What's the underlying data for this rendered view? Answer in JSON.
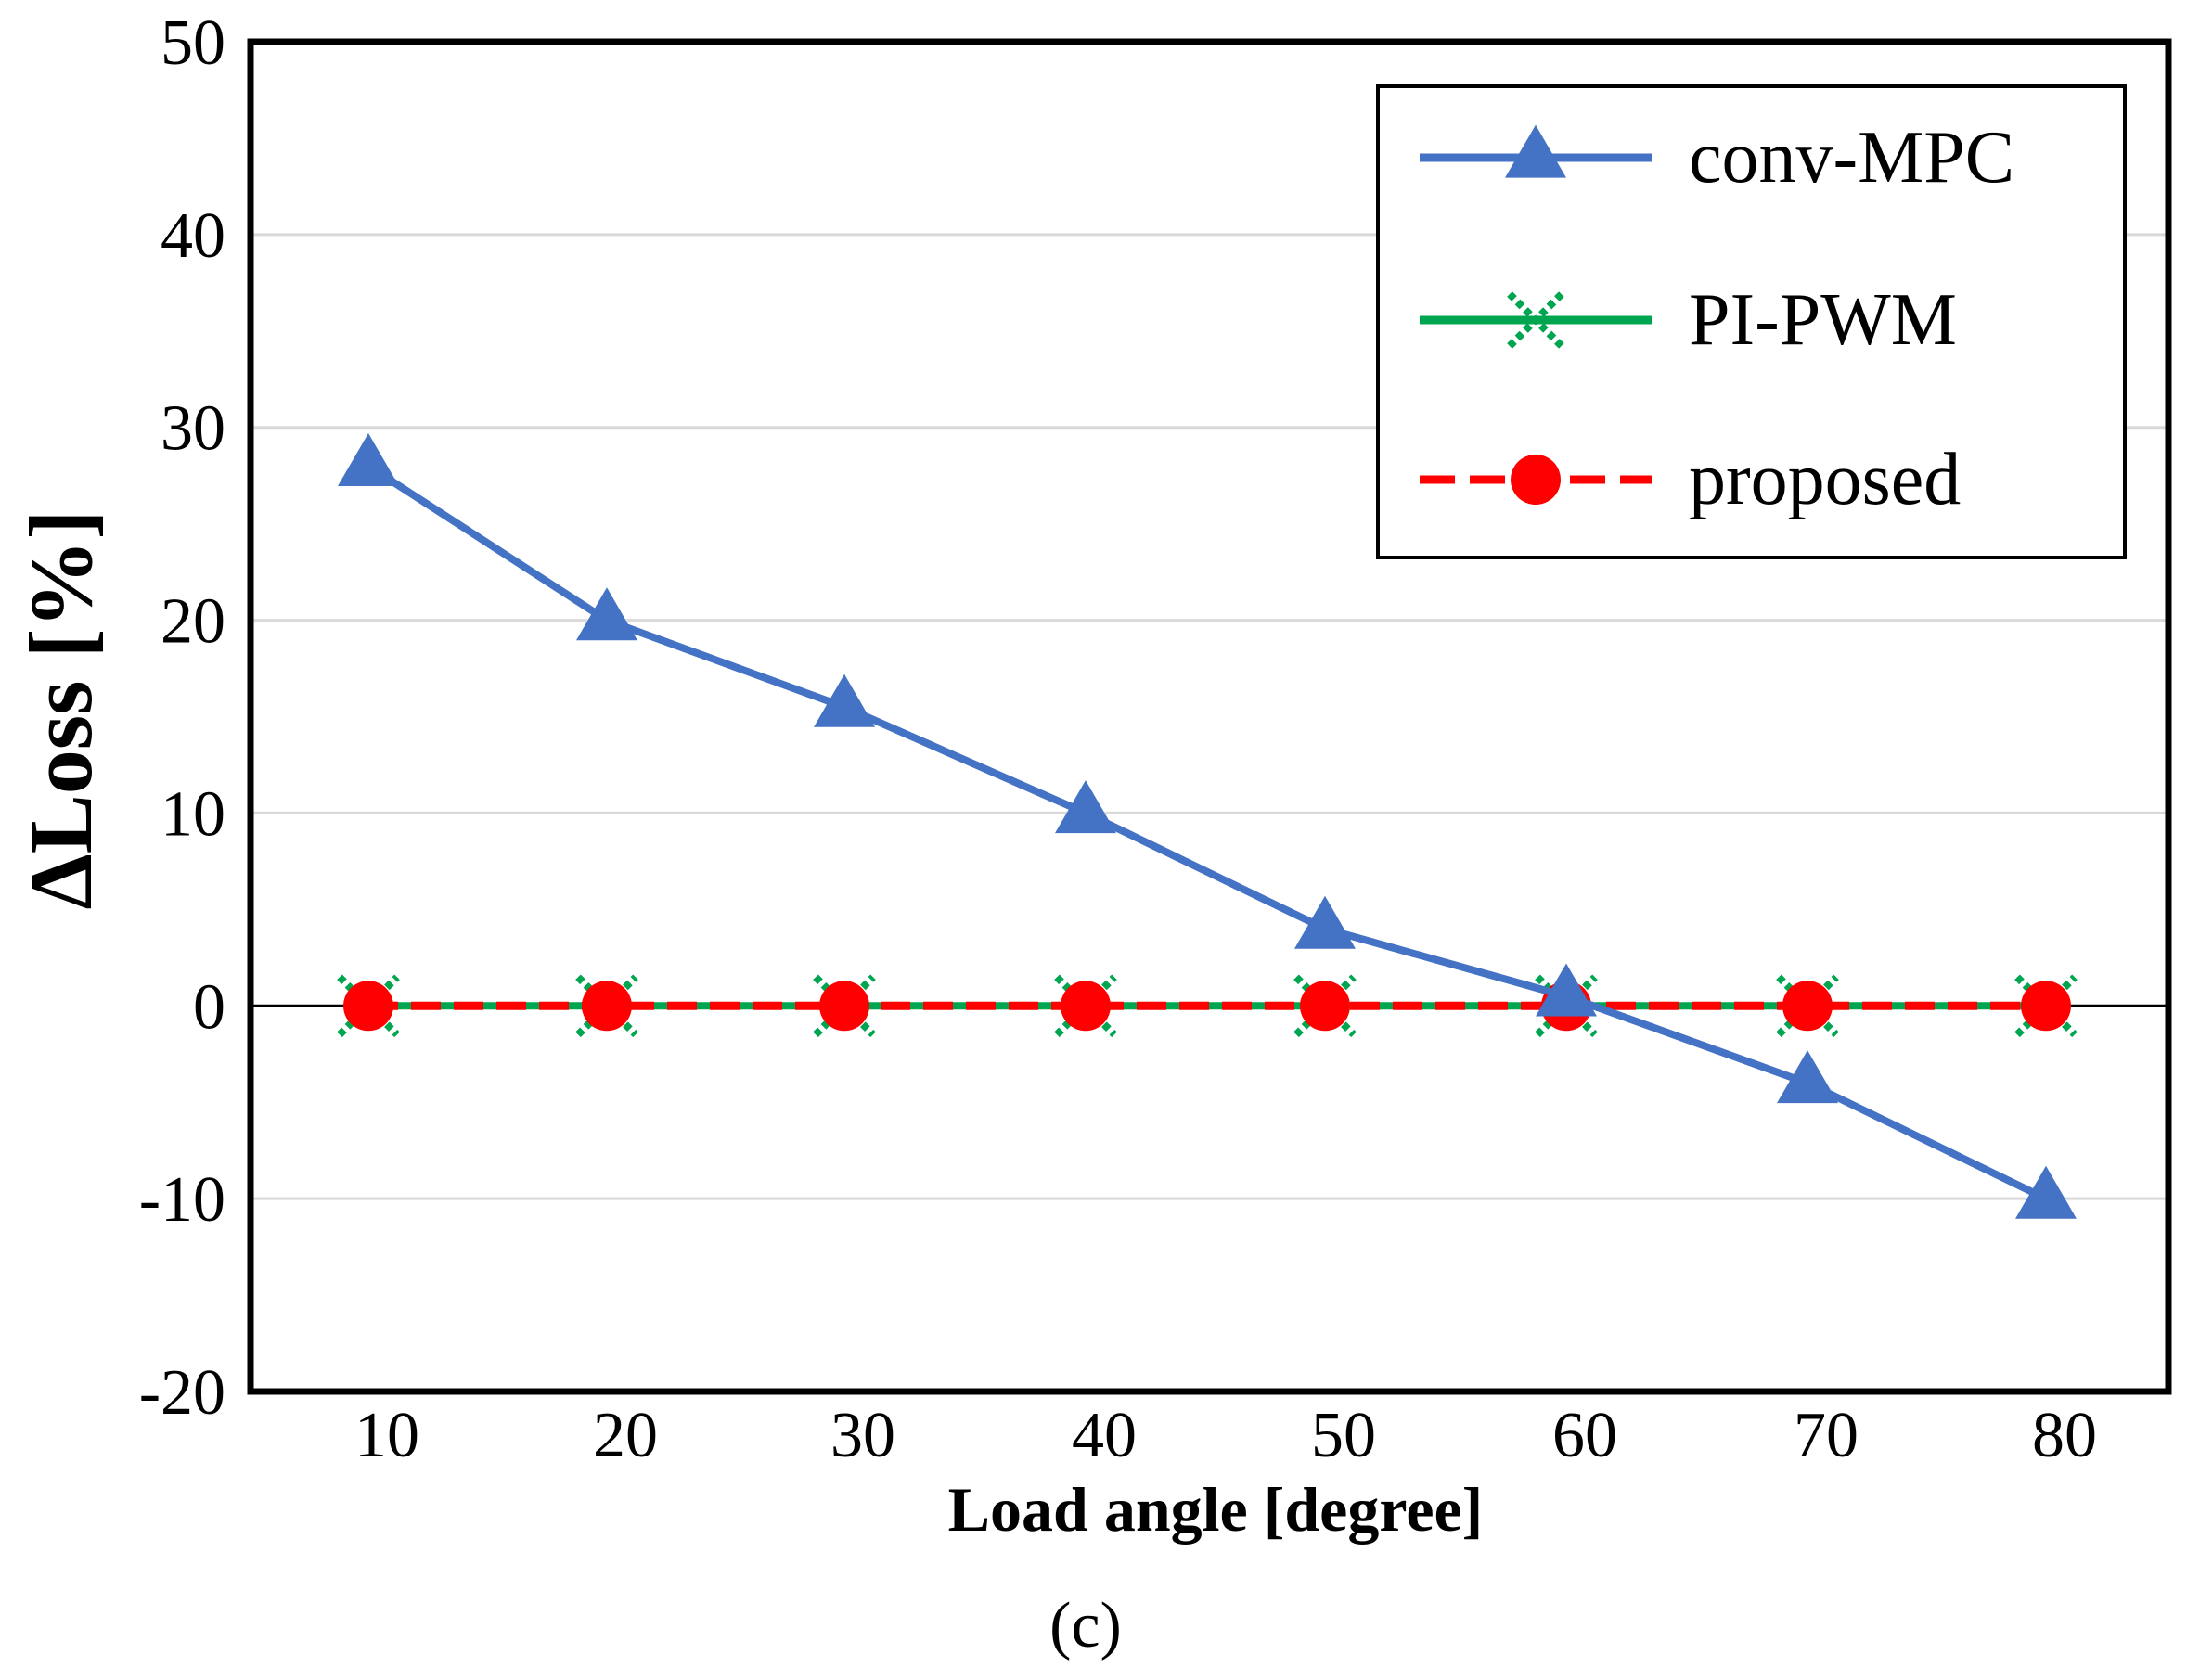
{
  "chart_data": {
    "type": "line",
    "title": "",
    "xlabel": "Load angle [degree]",
    "ylabel": "ΔLoss [%]",
    "caption": "(c)",
    "x": [
      10,
      20,
      30,
      40,
      50,
      60,
      70,
      80
    ],
    "x_tick_labels": [
      "10",
      "20",
      "30",
      "40",
      "50",
      "60",
      "70",
      "80"
    ],
    "ylim": [
      -20,
      50
    ],
    "y_ticks": [
      -20,
      -10,
      0,
      10,
      20,
      30,
      40,
      50
    ],
    "y_tick_labels": [
      "-20",
      "-10",
      "0",
      "10",
      "20",
      "30",
      "40",
      "50"
    ],
    "grid": "horizontal",
    "legend_position": "top-right",
    "series": [
      {
        "name": "conv-MPC",
        "color": "#4472C4",
        "marker": "triangle",
        "line_style": "solid",
        "values": [
          28,
          20,
          15.5,
          10,
          4,
          0.5,
          -4,
          -10
        ]
      },
      {
        "name": "PI-PWM",
        "color": "#00A550",
        "marker": "x",
        "line_style": "solid",
        "values": [
          0,
          0,
          0,
          0,
          0,
          0,
          0,
          0
        ]
      },
      {
        "name": "proposed",
        "color": "#FF0000",
        "marker": "circle",
        "line_style": "dashed",
        "values": [
          0,
          0,
          0,
          0,
          0,
          0,
          0,
          0
        ]
      }
    ]
  }
}
